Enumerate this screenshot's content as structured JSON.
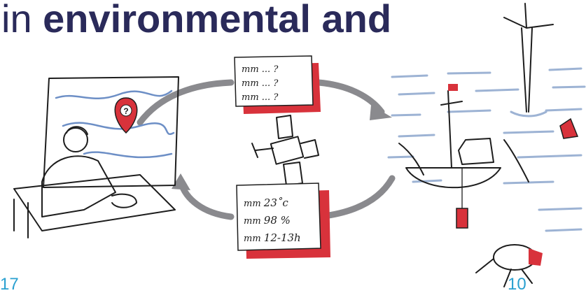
{
  "header": {
    "title_regular": "in",
    "title_bold": "environmental and"
  },
  "note": {
    "lines": [
      "23˚c",
      "98 %",
      "12-13h"
    ]
  },
  "footer": {
    "left": "17",
    "right": "10"
  }
}
